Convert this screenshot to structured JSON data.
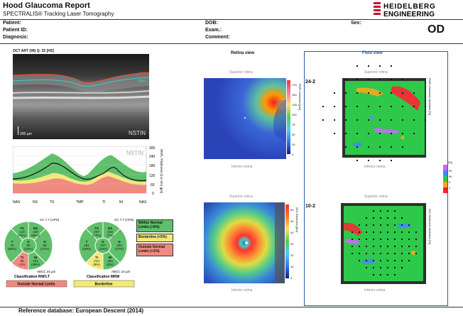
{
  "header": {
    "title": "Hood Glaucoma Report",
    "subtitle": "SPECTRALIS® Tracking Laser Tomography",
    "brand_line1": "HEIDELBERG",
    "brand_line2": "ENGINEERING",
    "eye": "OD"
  },
  "patient": {
    "patient_label": "Patient:",
    "patient_id_label": "Patient ID:",
    "diagnosis_label": "Diagnosis:",
    "dob_label": "DOB:",
    "exam_label": "Exam.:",
    "comment_label": "Comment:",
    "sex_label": "Sex:"
  },
  "oct": {
    "scan_label": "OCT ART (99) Q: 25 [HS]",
    "scale_label": "200 µm",
    "sector_label": "NSTIN",
    "ilm": "ILM",
    "rnfl": "RNFL"
  },
  "profile": {
    "sector_label": "NSTIN",
    "ylabel": "RNFL Thickness (3.5 mm) [µm]",
    "y_ticks": [
      "300",
      "240",
      "180",
      "120",
      "60",
      "0"
    ],
    "x_ticks": [
      "NAS",
      "NS",
      "TS",
      "TMP",
      "TI",
      "NI",
      "NAS"
    ]
  },
  "rnflt_circle": {
    "cc": "CC 7.7 (APS)",
    "caption": "Classification RNFLT",
    "classification": "Outside Normal Limits",
    "area": "ABCC 24 µm",
    "sectors": {
      "TS": [
        "TS",
        "143",
        "(70%)"
      ],
      "NS": [
        "NS",
        "160",
        "(60%)"
      ],
      "T": [
        "T",
        "76",
        "(60%)"
      ],
      "G": [
        "G",
        "90",
        "(16%)"
      ],
      "N": [
        "N",
        "69",
        "(17%)"
      ],
      "TI": [
        "TI",
        "95",
        "<1%"
      ],
      "NI": [
        "NI",
        "101",
        "(38%)"
      ]
    }
  },
  "mrw_circle": {
    "cc": "CC 7.7 (APS)",
    "caption": "Classification MRW",
    "classification": "Borderline",
    "area": "ABCC 24 µm",
    "sectors": {
      "TS": [
        "TS",
        "237",
        "(17%)"
      ],
      "NS": [
        "NS",
        "243",
        "(7%)"
      ],
      "T": [
        "T",
        "191",
        "(28%)"
      ],
      "G": [
        "G",
        "247",
        "(10%)"
      ],
      "N": [
        "N",
        "303",
        "(27%)"
      ],
      "TI": [
        "TI",
        "213",
        "(9%)"
      ],
      "NI": [
        "NI",
        "264",
        "(5%)"
      ]
    }
  },
  "legend": {
    "wnl": "Within Normal Limits (>5%)",
    "bl": "Borderline (<5%)",
    "onl": "Outside Normal Limits (<1%)",
    "colors": {
      "wnl": "#5fbf6a",
      "bl": "#f3e97a",
      "onl": "#f08a80"
    }
  },
  "retina_view": {
    "title": "Retina view",
    "superior": "Superior retina",
    "inferior": "Inferior retina",
    "rnfl_scale_label": "RNFL thickness [µm]",
    "rnfl_ticks": [
      "175",
      "150",
      "125",
      "100",
      "75",
      "50",
      "25",
      "0"
    ],
    "gcl_scale_label": "GCL thickness [µm]",
    "gcl_ticks": [
      "60",
      "50",
      "40",
      "30",
      "20",
      "10",
      "0"
    ]
  },
  "field_view": {
    "title": "Field view",
    "superior": "Superior retina",
    "inferior": "Inferior retina",
    "label_242": "24-2",
    "label_102": "10-2",
    "rnfl_dev_label": "RNFL thickness deviation [%]",
    "gcl_dev_label": "GCL thickness deviation [%]",
    "dev_scale_unit": "[%]",
    "dev_ticks": [
      "99",
      "95",
      "5",
      "1"
    ]
  },
  "footer": {
    "reference": "Reference database: European Descent (2014)"
  }
}
